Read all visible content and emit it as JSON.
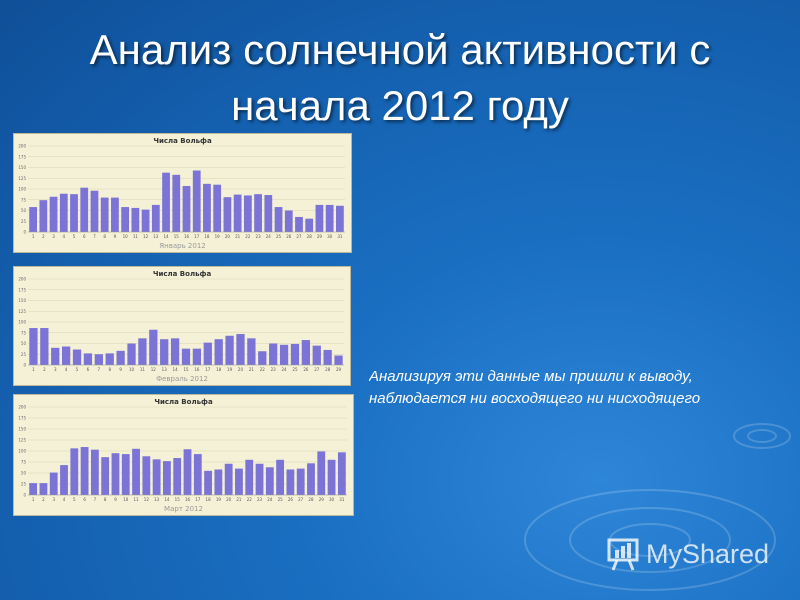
{
  "slide": {
    "title_line1": "Анализ солнечной активности с",
    "title_line2": "начала  2012 году",
    "body_line1": "Анализируя эти данные мы пришли к выводу,",
    "body_line2": "наблюдается ни восходящего ни нисходящего"
  },
  "watermark": {
    "text": "MyShared"
  },
  "colors": {
    "background": "#1a6fc2",
    "bar": "#7b74d6",
    "panel": "#f4f1d6",
    "grid": "#d8d3b2"
  },
  "chart_data": [
    {
      "type": "bar",
      "title": "Числа Вольфа",
      "xlabel": "Январь 2012",
      "ylim": [
        0,
        200
      ],
      "yticks": [
        0,
        25,
        50,
        75,
        100,
        125,
        150,
        175,
        200
      ],
      "categories": [
        "1",
        "2",
        "3",
        "4",
        "5",
        "6",
        "7",
        "8",
        "9",
        "10",
        "11",
        "12",
        "13",
        "14",
        "15",
        "16",
        "17",
        "18",
        "19",
        "20",
        "21",
        "22",
        "23",
        "24",
        "25",
        "26",
        "27",
        "28",
        "29",
        "30",
        "31"
      ],
      "values": [
        58,
        74,
        82,
        89,
        88,
        103,
        96,
        80,
        80,
        58,
        56,
        52,
        63,
        138,
        133,
        107,
        143,
        112,
        110,
        81,
        87,
        85,
        88,
        86,
        58,
        50,
        35,
        31,
        63,
        63,
        61
      ]
    },
    {
      "type": "bar",
      "title": "Числа Вольфа",
      "xlabel": "Февраль 2012",
      "ylim": [
        0,
        200
      ],
      "yticks": [
        0,
        25,
        50,
        75,
        100,
        125,
        150,
        175,
        200
      ],
      "categories": [
        "1",
        "2",
        "3",
        "4",
        "5",
        "6",
        "7",
        "8",
        "9",
        "10",
        "11",
        "12",
        "13",
        "14",
        "15",
        "16",
        "17",
        "18",
        "19",
        "20",
        "21",
        "22",
        "23",
        "24",
        "25",
        "26",
        "27",
        "28",
        "29"
      ],
      "values": [
        86,
        86,
        40,
        43,
        36,
        27,
        25,
        27,
        33,
        50,
        62,
        82,
        60,
        62,
        38,
        38,
        52,
        60,
        68,
        72,
        62,
        32,
        50,
        47,
        49,
        58,
        45,
        35,
        22
      ]
    },
    {
      "type": "bar",
      "title": "Числа Вольфа",
      "xlabel": "Март 2012",
      "ylim": [
        0,
        200
      ],
      "yticks": [
        0,
        25,
        50,
        75,
        100,
        125,
        150,
        175,
        200
      ],
      "categories": [
        "1",
        "2",
        "3",
        "4",
        "5",
        "6",
        "7",
        "8",
        "9",
        "10",
        "11",
        "12",
        "13",
        "14",
        "15",
        "16",
        "17",
        "18",
        "19",
        "20",
        "21",
        "22",
        "23",
        "24",
        "25",
        "26",
        "27",
        "28",
        "29",
        "30",
        "31"
      ],
      "values": [
        27,
        27,
        51,
        68,
        106,
        109,
        103,
        86,
        95,
        93,
        105,
        88,
        81,
        77,
        84,
        104,
        93,
        55,
        58,
        71,
        60,
        80,
        71,
        63,
        80,
        58,
        60,
        72,
        99,
        80,
        97
      ]
    }
  ]
}
